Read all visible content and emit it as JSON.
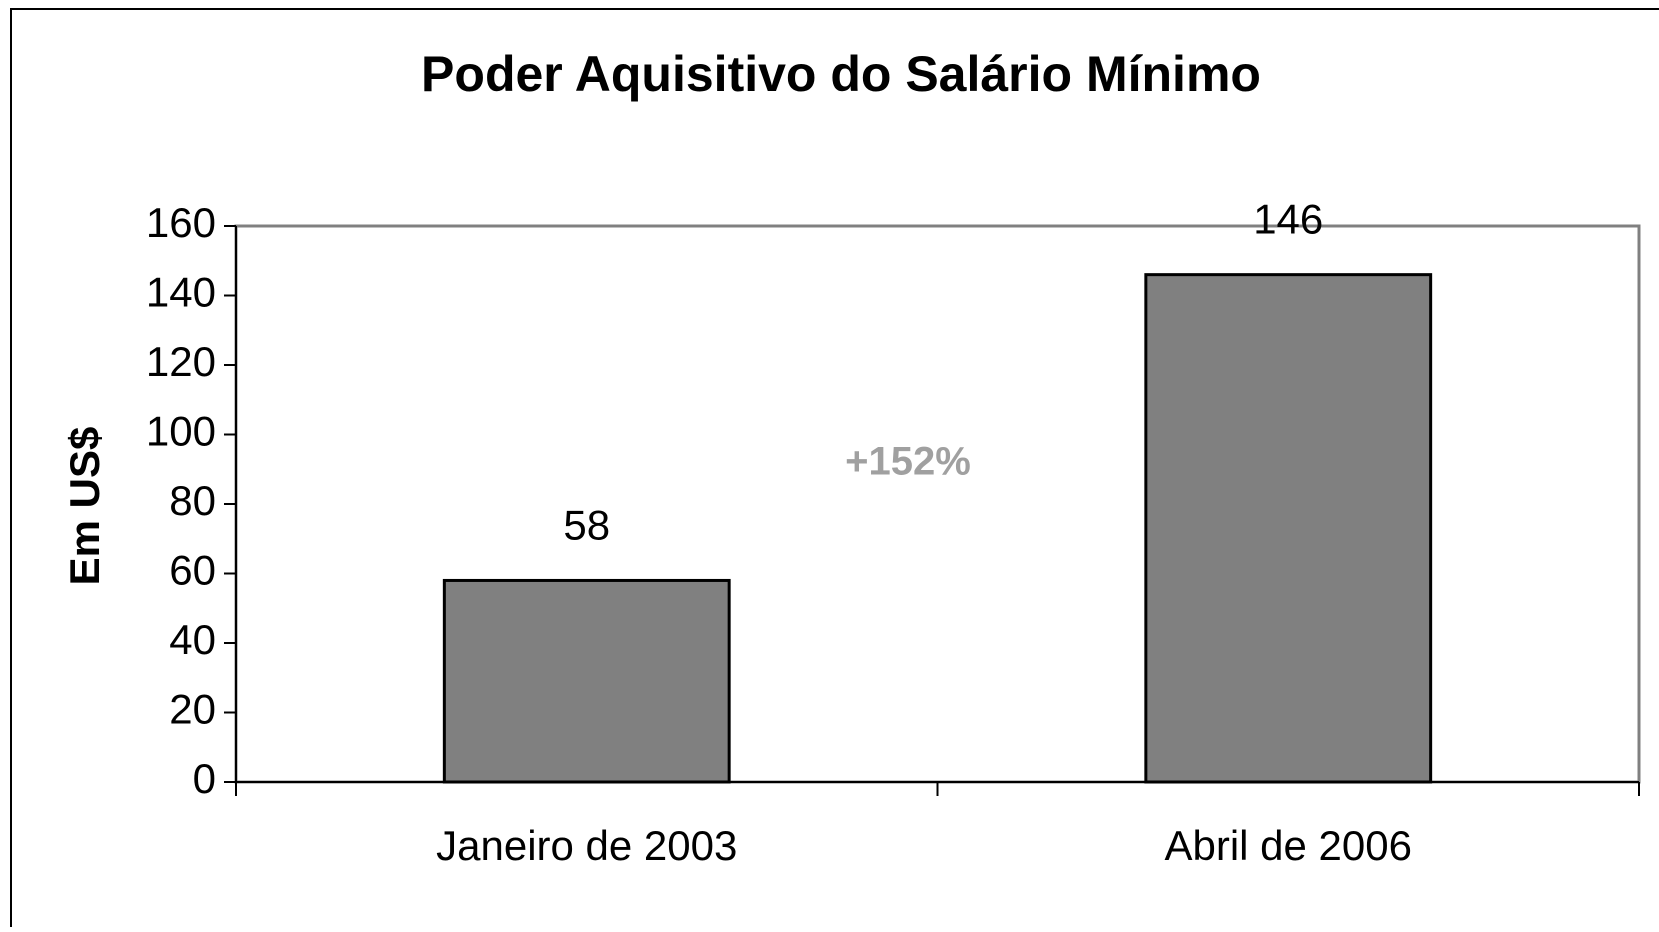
{
  "chart_data": {
    "type": "bar",
    "title": "Poder Aquisitivo do Salário Mínimo",
    "y_label": "Em US$",
    "categories": [
      "Janeiro de 2003",
      "Abril de 2006"
    ],
    "values": [
      58,
      146
    ],
    "color": "#808080",
    "ylim": [
      0,
      160
    ],
    "yticks": [
      0,
      20,
      40,
      60,
      80,
      100,
      120,
      140,
      160
    ],
    "annotation": "+152%"
  }
}
